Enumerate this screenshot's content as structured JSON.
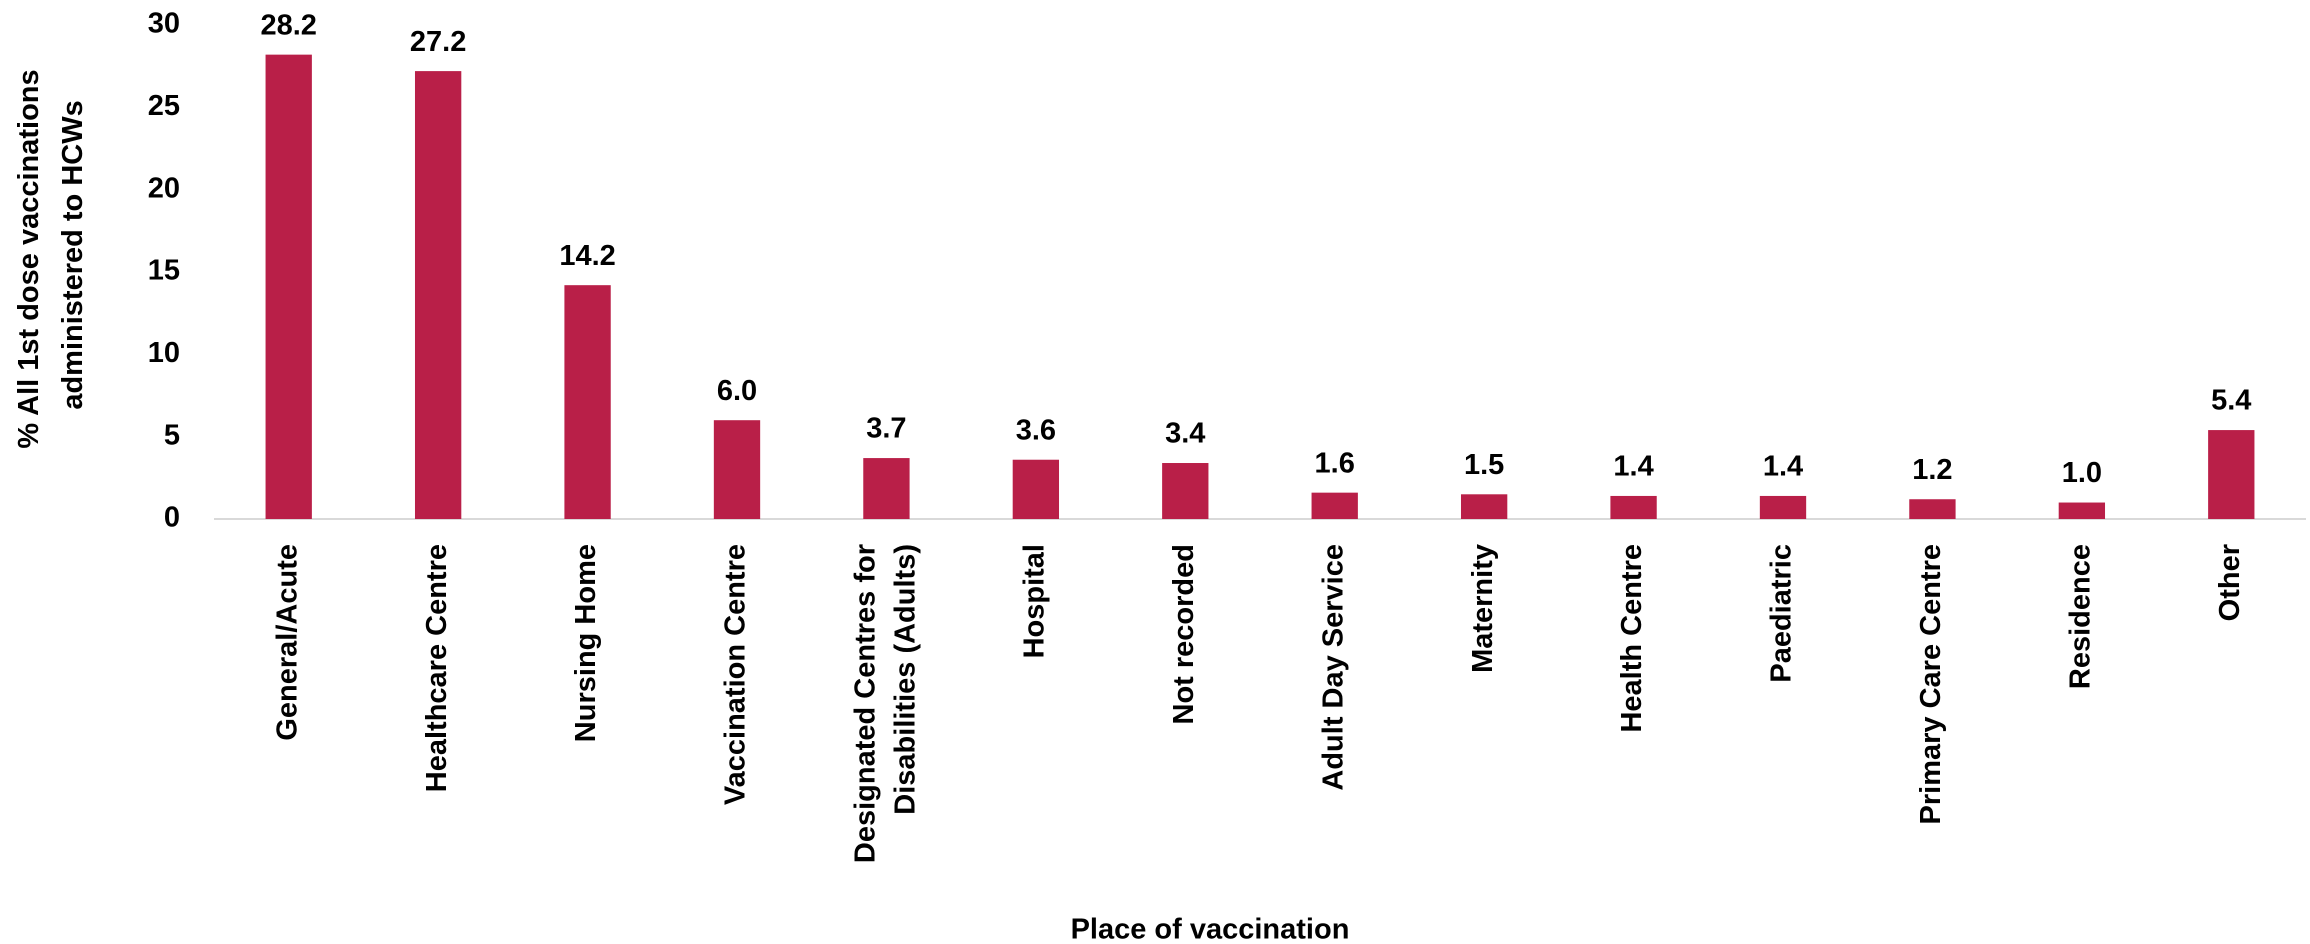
{
  "chart_data": {
    "type": "bar",
    "categories": [
      "General/Acute",
      "Healthcare Centre",
      "Nursing Home",
      "Vaccination Centre",
      "Designated Centres for Disabilities (Adults)",
      "Hospital",
      "Not recorded",
      "Adult Day Service",
      "Maternity",
      "Health Centre",
      "Paediatric",
      "Primary Care Centre",
      "Residence",
      "Other"
    ],
    "values": [
      28.2,
      27.2,
      14.2,
      6.0,
      3.7,
      3.6,
      3.4,
      1.6,
      1.5,
      1.4,
      1.4,
      1.2,
      1.0,
      5.4
    ],
    "value_labels": [
      "28.2",
      "27.2",
      "14.2",
      "6.0",
      "3.7",
      "3.6",
      "3.4",
      "1.6",
      "1.5",
      "1.4",
      "1.4",
      "1.2",
      "1.0",
      "5.4"
    ],
    "color": "#b91f48",
    "xlabel": "Place of vaccination",
    "ylabel": "% All 1st dose vaccinations administered to HCWs",
    "ylim": [
      0,
      30
    ],
    "yticks": [
      0,
      5,
      10,
      15,
      20,
      25,
      30
    ],
    "grid": false
  }
}
